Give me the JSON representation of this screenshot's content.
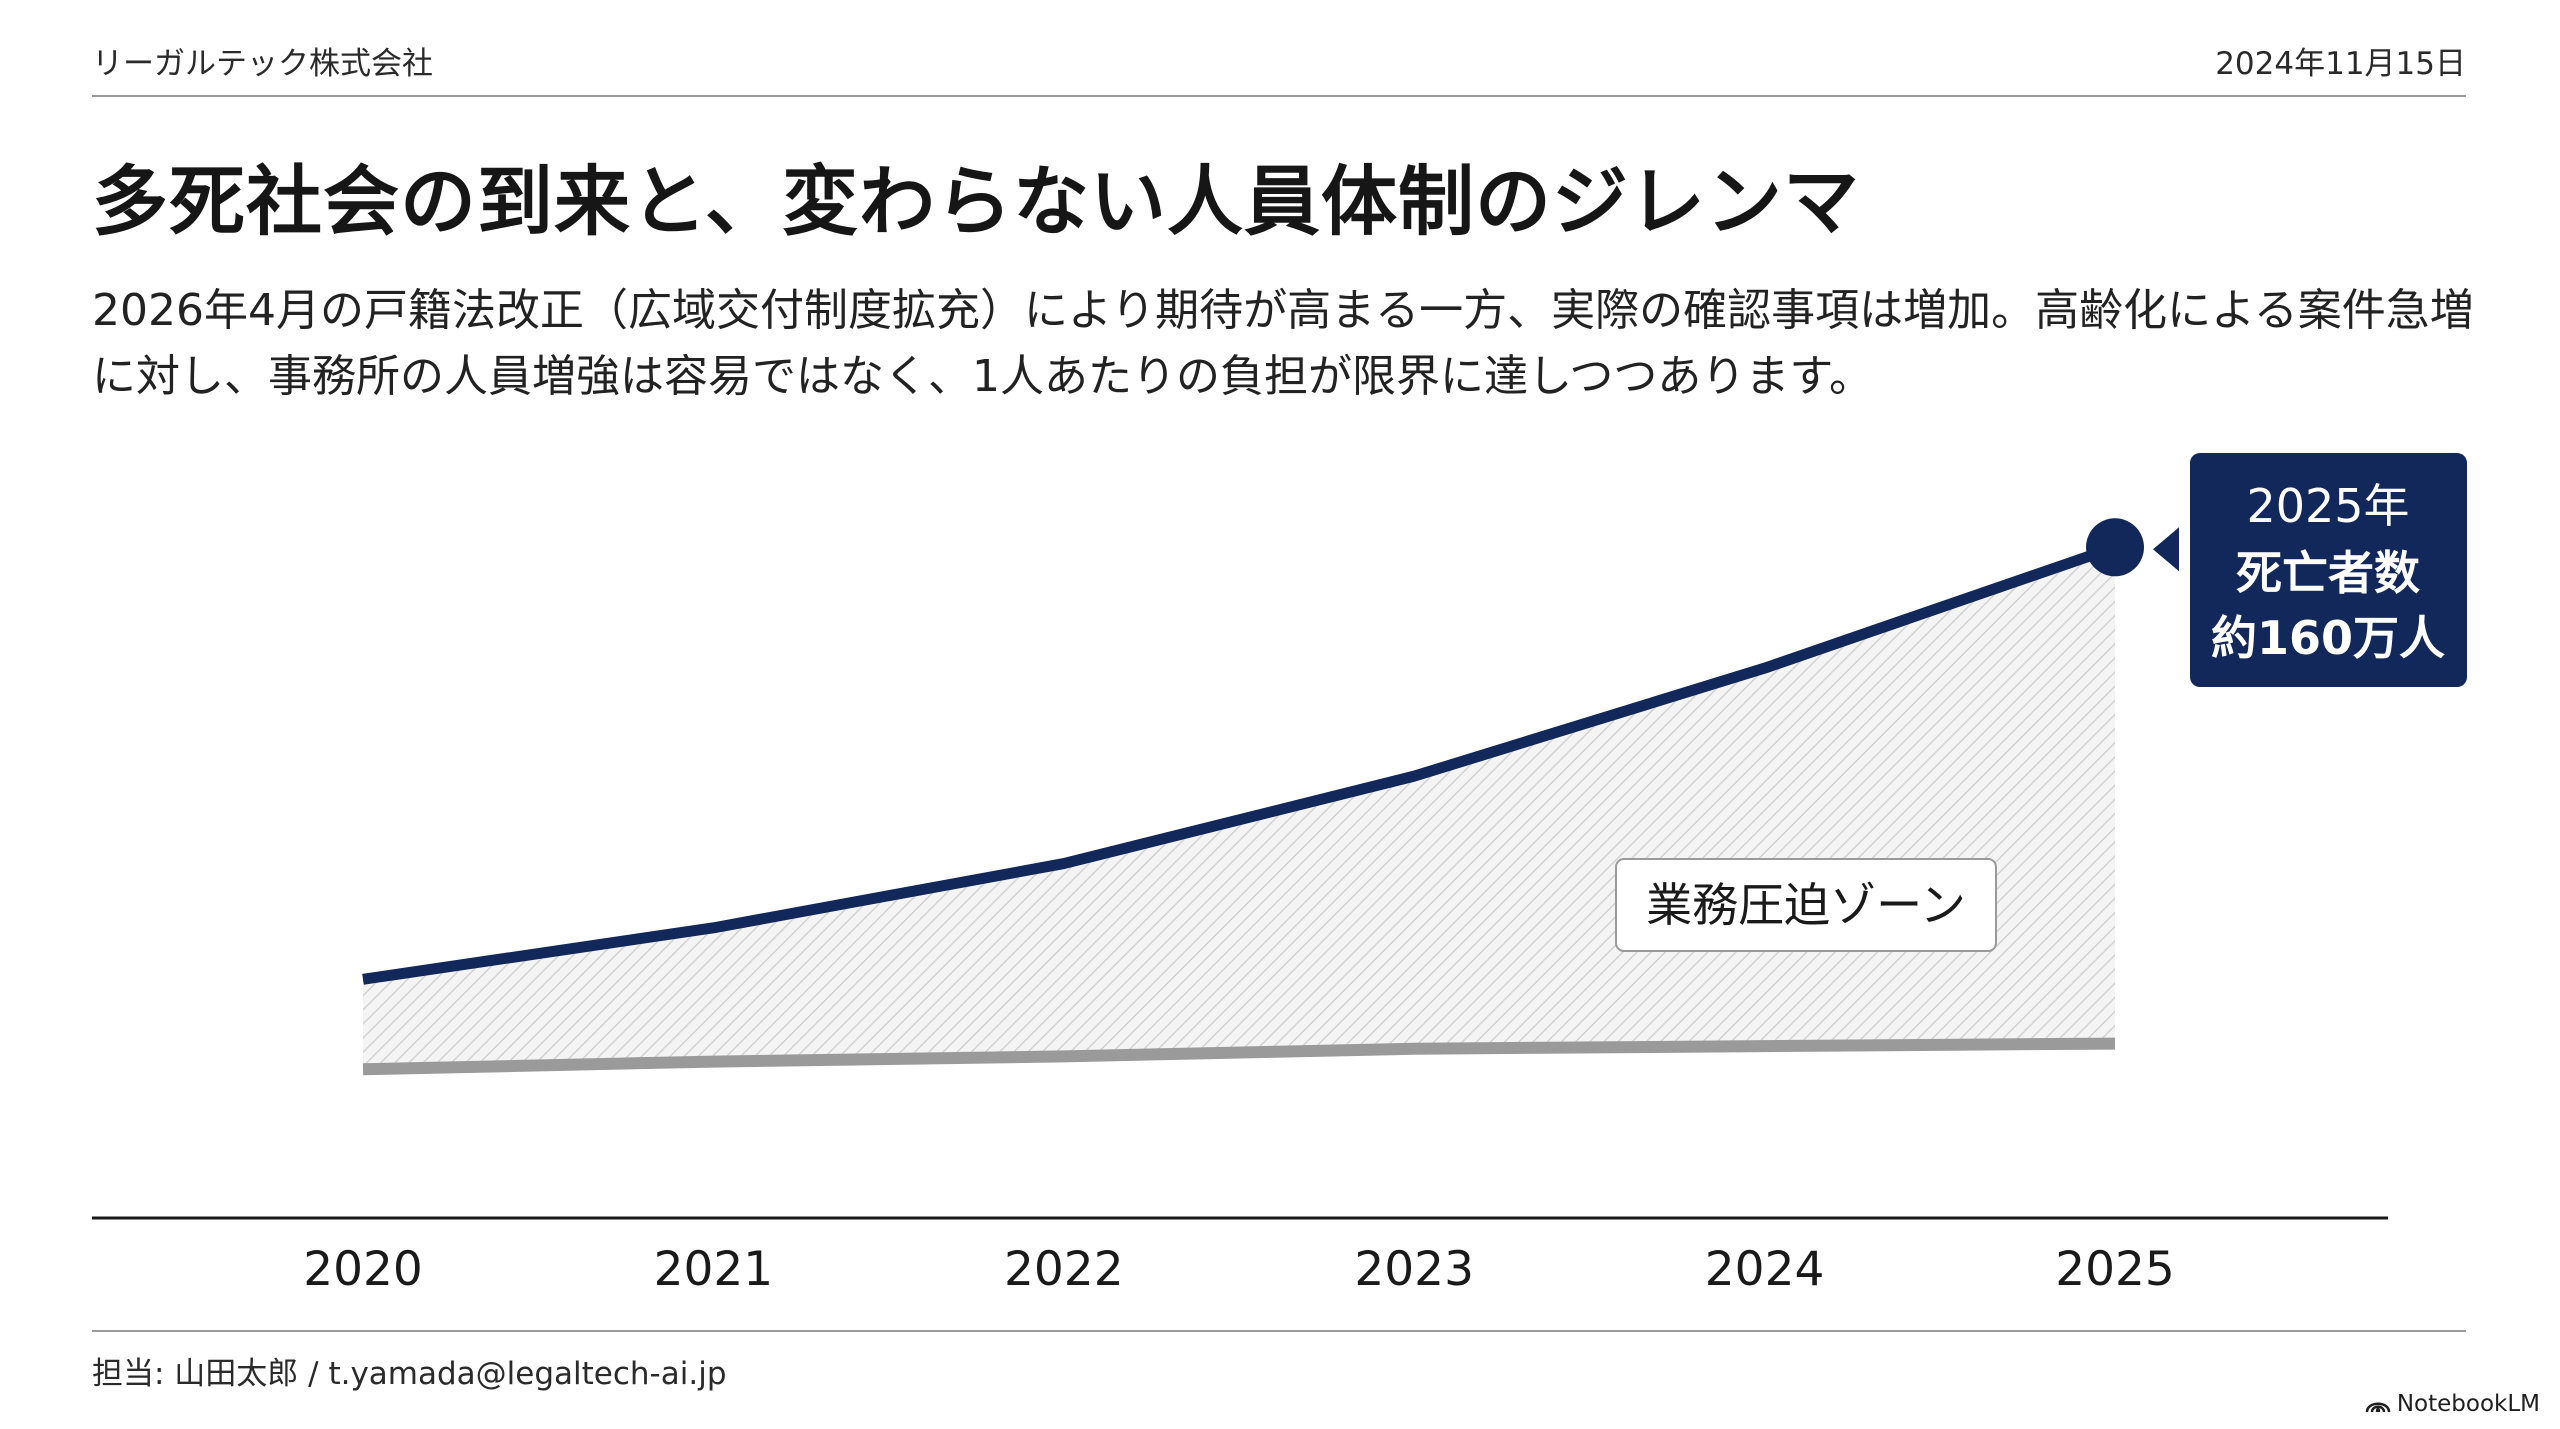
{
  "header": {
    "company": "リーガルテック株式会社",
    "date": "2024年11月15日"
  },
  "slide": {
    "title": "多死社会の到来と、変わらない人員体制のジレンマ",
    "lead": "2026年4月の戸籍法改正（広域交付制度拡充）により期待が高まる一方、実際の確認事項は増加。高齢化による案件急増に対し、事務所の人員増強は容易ではなく、1人あたりの負担が限界に達しつつあります。"
  },
  "chart_data": {
    "type": "area",
    "categories": [
      "2020",
      "2021",
      "2022",
      "2023",
      "2024",
      "2025"
    ],
    "series": [
      {
        "values": [
          0.0,
          0.2,
          0.45,
          0.79,
          1.21,
          1.68
        ],
        "color": "#13285a"
      },
      {
        "values": [
          -0.35,
          -0.32,
          -0.3,
          -0.27,
          -0.26,
          -0.25
        ],
        "color": "#9a9a9a"
      }
    ],
    "ylim": [
      -0.8,
      2.0
    ],
    "grid": false,
    "shaded_zone": {
      "label": "業務圧迫ゾーン",
      "between": "series 1 and series 2",
      "fill": "diagonal hatch, light gray"
    },
    "callout": {
      "category": "2025",
      "lines": [
        "2025年",
        "死亡者数",
        "約160万人"
      ],
      "bg": "#13285a"
    }
  },
  "footer": {
    "contact": "担当: 山田太郎 / t.yamada@legaltech-ai.jp",
    "brand": "NotebookLM"
  },
  "colors": {
    "navy": "#13285a",
    "gray": "#9a9a9a"
  }
}
